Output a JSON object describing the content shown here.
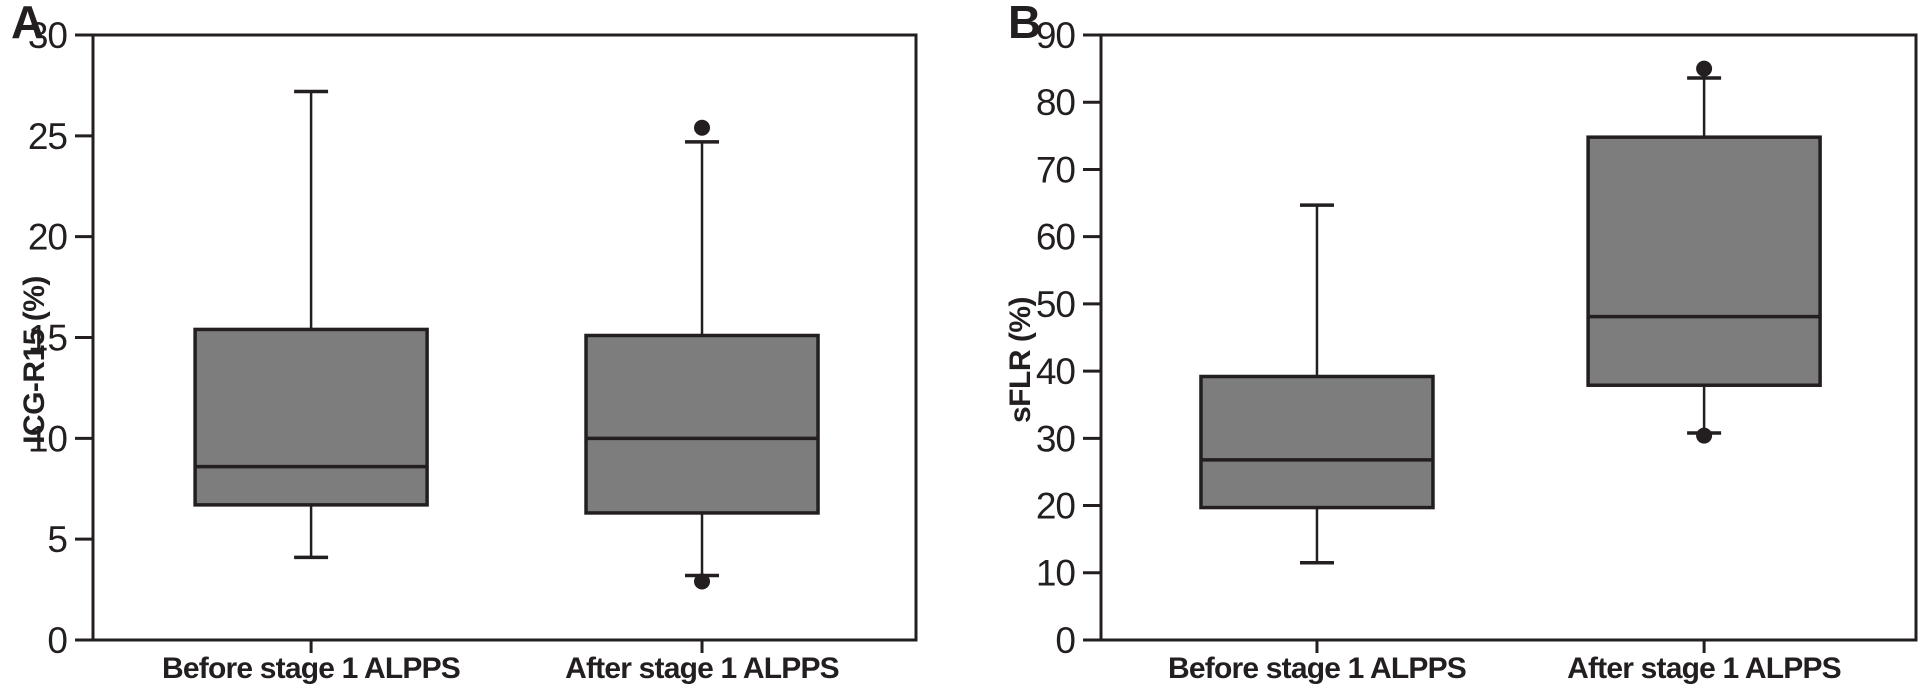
{
  "figure": {
    "background_color": "#ffffff",
    "ink_color": "#231f20",
    "box_fill_color": "#7d7d7d"
  },
  "chart_data": [
    {
      "type": "box",
      "panel_label": "A",
      "ylabel": "ICG-R15 (%)",
      "xlabel": "",
      "ylim": [
        0,
        30
      ],
      "yticks": [
        0,
        5,
        10,
        15,
        20,
        25,
        30
      ],
      "grid": false,
      "legend": "none",
      "categories": [
        "Before stage 1 ALPPS",
        "After stage 1 ALPPS"
      ],
      "boxes": [
        {
          "category": "Before stage 1 ALPPS",
          "whisker_low": 4.1,
          "q1": 6.7,
          "median": 8.6,
          "q3": 15.4,
          "whisker_high": 27.2,
          "outliers": []
        },
        {
          "category": "After stage 1 ALPPS",
          "whisker_low": 3.2,
          "q1": 6.3,
          "median": 10.0,
          "q3": 15.1,
          "whisker_high": 24.7,
          "outliers": [
            25.4,
            2.9
          ]
        }
      ]
    },
    {
      "type": "box",
      "panel_label": "B",
      "ylabel": "sFLR (%)",
      "xlabel": "",
      "ylim": [
        0,
        90
      ],
      "yticks": [
        0,
        10,
        20,
        30,
        40,
        50,
        60,
        70,
        80,
        90
      ],
      "grid": false,
      "legend": "none",
      "categories": [
        "Before stage 1 ALPPS",
        "After stage 1 ALPPS"
      ],
      "boxes": [
        {
          "category": "Before stage 1 ALPPS",
          "whisker_low": 11.5,
          "q1": 19.7,
          "median": 26.8,
          "q3": 39.2,
          "whisker_high": 64.7,
          "outliers": []
        },
        {
          "category": "After stage 1 ALPPS",
          "whisker_low": 30.8,
          "q1": 37.9,
          "median": 48.1,
          "q3": 74.8,
          "whisker_high": 83.6,
          "outliers": [
            85.0,
            30.4
          ]
        }
      ]
    }
  ]
}
